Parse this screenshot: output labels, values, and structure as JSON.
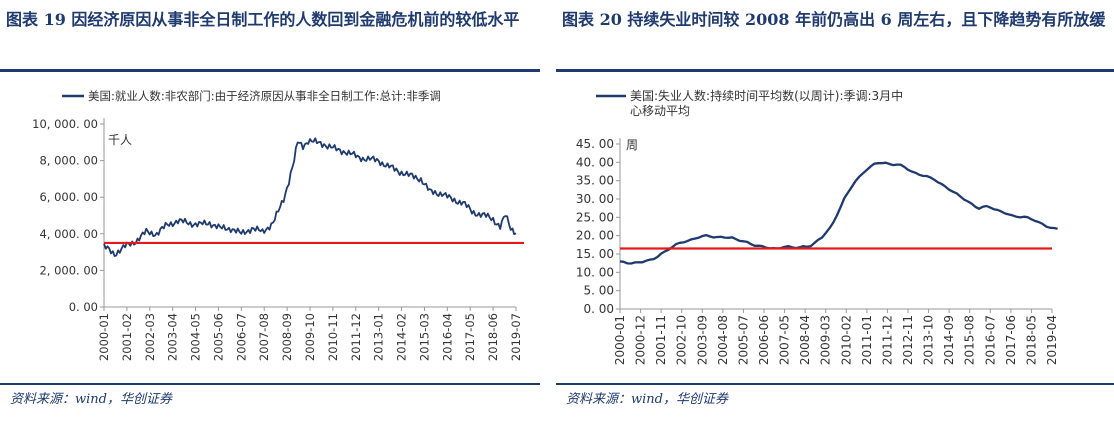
{
  "figures": [
    {
      "title": "图表 19 因经济原因从事非全日制工作的人数回到金融危机前的较低水平",
      "source": "资料来源：wind，华创证券"
    },
    {
      "title": "图表 20 持续失业时间较 2008 年前仍高出 6 周左右，且下降趋势有所放缓",
      "source": "资料来源：wind，华创证券"
    }
  ],
  "chart_data": [
    {
      "type": "line",
      "legend": "美国:就业人数:非农部门:由于经济原因从事非全日制工作:总计:非季调",
      "unit_label": "千人",
      "ylim": [
        0,
        10000
      ],
      "yticks": [
        "0. 00",
        "2, 000. 00",
        "4, 000. 00",
        "6, 000. 00",
        "8, 000. 00",
        "10, 000. 00"
      ],
      "ytick_values": [
        0,
        2000,
        4000,
        6000,
        8000,
        10000
      ],
      "xticks": [
        "2000-01",
        "2001-02",
        "2002-03",
        "2003-04",
        "2004-05",
        "2005-06",
        "2006-07",
        "2007-08",
        "2008-09",
        "2009-10",
        "2010-11",
        "2011-12",
        "2013-01",
        "2014-02",
        "2015-03",
        "2016-04",
        "2017-05",
        "2018-06",
        "2019-07"
      ],
      "reference_line": 3500,
      "series": [
        {
          "color": "#1f3a6e",
          "x": [
            "2000-01",
            "2000-07",
            "2001-01",
            "2001-07",
            "2002-01",
            "2002-07",
            "2003-01",
            "2003-07",
            "2004-01",
            "2004-07",
            "2005-01",
            "2005-07",
            "2006-01",
            "2006-07",
            "2007-01",
            "2007-07",
            "2008-01",
            "2008-04",
            "2008-07",
            "2008-10",
            "2009-01",
            "2009-03",
            "2009-06",
            "2009-09",
            "2010-01",
            "2010-06",
            "2011-01",
            "2011-06",
            "2012-01",
            "2012-06",
            "2013-01",
            "2013-06",
            "2014-01",
            "2014-06",
            "2015-01",
            "2015-06",
            "2016-01",
            "2016-06",
            "2017-01",
            "2017-06",
            "2018-01",
            "2018-06",
            "2018-10",
            "2019-01",
            "2019-04",
            "2019-07"
          ],
          "values": [
            3300,
            2900,
            3300,
            3600,
            4100,
            4000,
            4500,
            4700,
            4600,
            4500,
            4600,
            4300,
            4300,
            4000,
            4300,
            4100,
            4600,
            5200,
            5900,
            6900,
            8000,
            9000,
            8800,
            9100,
            9000,
            8900,
            8600,
            8500,
            8200,
            8100,
            8000,
            7700,
            7400,
            7200,
            7000,
            6300,
            6200,
            5900,
            5700,
            5200,
            5000,
            4800,
            4400,
            5000,
            4300,
            4100
          ]
        }
      ]
    },
    {
      "type": "line",
      "legend": "美国:失业人数:持续时间平均数(以周计):季调:3月中心移动平均",
      "unit_label": "周",
      "ylim": [
        0,
        45
      ],
      "yticks": [
        "0. 00",
        "5. 00",
        "10. 00",
        "15. 00",
        "20. 00",
        "25. 00",
        "30. 00",
        "35. 00",
        "40. 00",
        "45. 00"
      ],
      "ytick_values": [
        0,
        5,
        10,
        15,
        20,
        25,
        30,
        35,
        40,
        45
      ],
      "xticks": [
        "2000-01",
        "2000-12",
        "2001-11",
        "2002-10",
        "2003-09",
        "2004-08",
        "2005-07",
        "2006-06",
        "2007-05",
        "2008-04",
        "2009-03",
        "2010-02",
        "2011-01",
        "2011-12",
        "2012-11",
        "2013-10",
        "2014-09",
        "2015-08",
        "2016-07",
        "2017-06",
        "2018-05",
        "2019-04"
      ],
      "reference_line": 16.5,
      "series": [
        {
          "color": "#1f3a6e",
          "x": [
            "2000-01",
            "2000-06",
            "2001-01",
            "2001-06",
            "2002-01",
            "2002-06",
            "2003-01",
            "2003-06",
            "2003-12",
            "2004-06",
            "2005-01",
            "2005-06",
            "2006-01",
            "2006-06",
            "2007-01",
            "2007-06",
            "2008-01",
            "2008-06",
            "2009-01",
            "2009-06",
            "2010-01",
            "2010-06",
            "2011-01",
            "2011-06",
            "2012-01",
            "2012-06",
            "2013-01",
            "2013-06",
            "2014-01",
            "2014-06",
            "2015-01",
            "2015-06",
            "2016-01",
            "2016-06",
            "2017-01",
            "2017-06",
            "2018-01",
            "2018-06",
            "2019-01",
            "2019-04",
            "2019-07"
          ],
          "values": [
            12.8,
            12.5,
            12.8,
            13.5,
            15.5,
            17.5,
            18.5,
            19.5,
            20.0,
            19.5,
            19.5,
            18.5,
            17.5,
            16.8,
            16.5,
            17.0,
            16.8,
            17.0,
            19.5,
            22.5,
            30.0,
            34.5,
            38.0,
            40.0,
            39.5,
            39.5,
            37.5,
            36.5,
            35.5,
            33.5,
            31.5,
            29.5,
            27.5,
            28.0,
            26.5,
            25.5,
            25.0,
            24.5,
            22.5,
            22.0,
            22.0
          ]
        }
      ]
    }
  ]
}
